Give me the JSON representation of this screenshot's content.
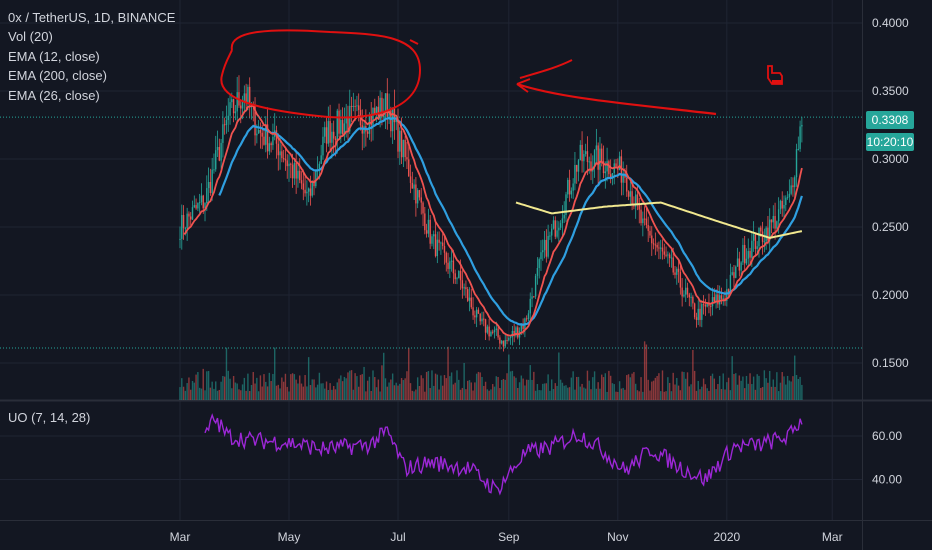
{
  "legend": {
    "symbol": "0x / TetherUS, 1D, BINANCE",
    "vol": "Vol (20)",
    "ema12": "EMA (12, close)",
    "ema200": "EMA (200, close)",
    "ema26": "EMA (26, close)"
  },
  "uo_legend": "UO (7, 14, 28)",
  "price_tag": {
    "value": "0.3308",
    "countdown": "10:20:10",
    "color": "#26a69a"
  },
  "colors": {
    "background": "#131722",
    "grid": "#1f2433",
    "up": "#26a69a",
    "down": "#ef5350",
    "ema12": "#f05350",
    "ema26": "#2f9fe0",
    "ema200": "#f1e88f",
    "uo": "#9c27d6",
    "annotation": "#e01010",
    "text": "#d1d4dc"
  },
  "chart_data": [
    {
      "type": "candlestick",
      "title": "0x / TetherUS, 1D, BINANCE",
      "xlabel": "",
      "ylabel": "",
      "x_ticks": [
        "Mar",
        "May",
        "Jul",
        "Sep",
        "Nov",
        "2020",
        "Mar"
      ],
      "y_ticks": [
        0.15,
        0.2,
        0.25,
        0.3,
        0.35,
        0.4
      ],
      "y_tick_labels": [
        "0.1500",
        "0.2000",
        "0.2500",
        "0.3000",
        "0.3500",
        "0.4000"
      ],
      "ylim": [
        0.125,
        0.415
      ],
      "grid": true,
      "last_price": 0.3308,
      "horizontal_lines": [
        0.3308,
        0.161
      ],
      "series": [
        {
          "name": "EMA (12, close)"
        },
        {
          "name": "EMA (26, close)"
        },
        {
          "name": "EMA (200, close)"
        },
        {
          "name": "Vol (20)"
        }
      ],
      "close_keypoints": [
        [
          "Mar 01",
          0.25
        ],
        [
          "Mar 15",
          0.27
        ],
        [
          "Mar 28",
          0.33
        ],
        [
          "Apr 06",
          0.35
        ],
        [
          "Apr 14",
          0.32
        ],
        [
          "Apr 25",
          0.31
        ],
        [
          "May 12",
          0.27
        ],
        [
          "May 22",
          0.32
        ],
        [
          "Jun 05",
          0.33
        ],
        [
          "Jun 15",
          0.33
        ],
        [
          "Jun 25",
          0.34
        ],
        [
          "Jul 05",
          0.3
        ],
        [
          "Jul 20",
          0.24
        ],
        [
          "Aug 05",
          0.21
        ],
        [
          "Aug 15",
          0.18
        ],
        [
          "Aug 30",
          0.165
        ],
        [
          "Sep 10",
          0.18
        ],
        [
          "Sep 20",
          0.23
        ],
        [
          "Sep 30",
          0.26
        ],
        [
          "Oct 10",
          0.3
        ],
        [
          "Oct 20",
          0.3
        ],
        [
          "Nov 05",
          0.29
        ],
        [
          "Nov 15",
          0.25
        ],
        [
          "Dec 01",
          0.22
        ],
        [
          "Dec 15",
          0.185
        ],
        [
          "Dec 31",
          0.2
        ],
        [
          "Jan 10",
          0.23
        ],
        [
          "Jan 25",
          0.25
        ],
        [
          "Feb 05",
          0.27
        ],
        [
          "Feb 12",
          0.3308
        ]
      ],
      "ema200_keypoints": [
        [
          "Sep 05",
          0.268
        ],
        [
          "Sep 25",
          0.26
        ],
        [
          "Oct 25",
          0.265
        ],
        [
          "Nov 25",
          0.268
        ],
        [
          "Dec 25",
          0.255
        ],
        [
          "Jan 25",
          0.242
        ],
        [
          "Feb 12",
          0.247
        ]
      ]
    },
    {
      "type": "line",
      "title": "UO (7, 14, 28)",
      "xlabel": "",
      "ylabel": "",
      "y_ticks": [
        40,
        60
      ],
      "y_tick_labels": [
        "40.00",
        "60.00"
      ],
      "ylim": [
        27,
        72
      ],
      "grid": true,
      "series": [
        {
          "name": "UO (7, 14, 28)"
        }
      ],
      "keypoints": [
        [
          "Mar 15",
          60
        ],
        [
          "Mar 20",
          68
        ],
        [
          "Mar 28",
          60
        ],
        [
          "Apr 10",
          58
        ],
        [
          "May 01",
          57
        ],
        [
          "May 20",
          54
        ],
        [
          "Jun 15",
          56
        ],
        [
          "Jun 25",
          62
        ],
        [
          "Jul 05",
          45
        ],
        [
          "Jul 20",
          48
        ],
        [
          "Aug 10",
          45
        ],
        [
          "Aug 25",
          35
        ],
        [
          "Sep 10",
          52
        ],
        [
          "Sep 25",
          55
        ],
        [
          "Oct 10",
          61
        ],
        [
          "Oct 20",
          56
        ],
        [
          "Nov 05",
          44
        ],
        [
          "Nov 20",
          54
        ],
        [
          "Dec 05",
          46
        ],
        [
          "Dec 20",
          40
        ],
        [
          "Jan 05",
          55
        ],
        [
          "Jan 20",
          56
        ],
        [
          "Feb 05",
          60
        ],
        [
          "Feb 12",
          68
        ]
      ]
    }
  ]
}
